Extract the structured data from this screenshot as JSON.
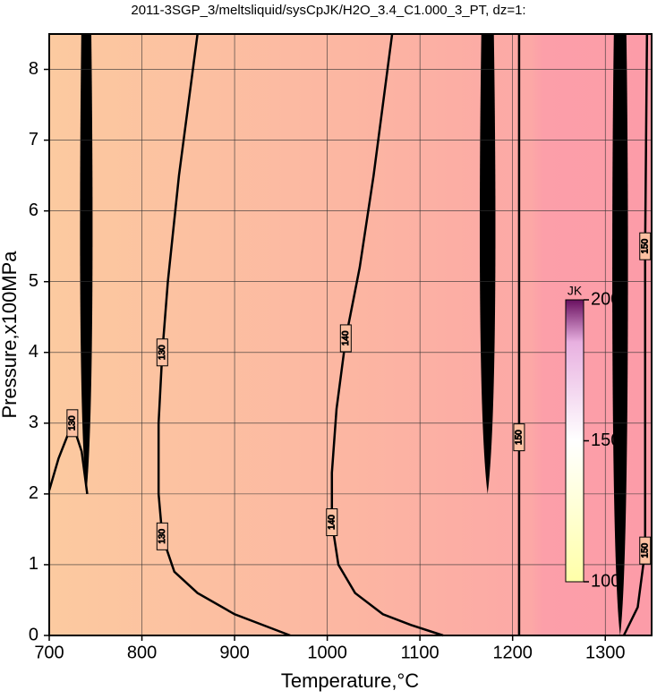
{
  "chart_data": {
    "type": "contour",
    "title": "2011-3SGP_3/meltsliquid/sysCpJK/H2O_3.4_C1.000_3_PT, dz=1:",
    "xlabel": "Temperature,°C",
    "ylabel": "Pressure,x100MPa",
    "xlim": [
      700,
      1350
    ],
    "ylim": [
      0,
      8.5
    ],
    "xticks": [
      700,
      800,
      900,
      1000,
      1100,
      1200,
      1300
    ],
    "yticks": [
      0,
      1,
      2,
      3,
      4,
      5,
      6,
      7,
      8
    ],
    "grid": true,
    "colorbar": {
      "label": "JK",
      "lim": [
        100,
        200
      ],
      "ticks": [
        100,
        150,
        200
      ]
    },
    "contours": [
      {
        "level": 130,
        "x": [
          960,
          930,
          900,
          860,
          835,
          822,
          818,
          818,
          822,
          828,
          840,
          860
        ],
        "y": [
          0,
          0.15,
          0.3,
          0.6,
          0.9,
          1.4,
          2.0,
          3.0,
          4.0,
          5.0,
          6.5,
          8.5
        ]
      },
      {
        "level": 130,
        "x": [
          700,
          710,
          725,
          735,
          741
        ],
        "y": [
          2.05,
          2.5,
          3.0,
          2.6,
          2.0
        ]
      },
      {
        "level": 140,
        "x": [
          1125,
          1090,
          1060,
          1030,
          1012,
          1005,
          1005,
          1010,
          1020,
          1035,
          1050,
          1070
        ],
        "y": [
          0,
          0.15,
          0.3,
          0.6,
          1.0,
          1.6,
          2.3,
          3.2,
          4.2,
          5.2,
          6.5,
          8.5
        ]
      },
      {
        "level": 150,
        "x": [
          1207,
          1207,
          1207,
          1207
        ],
        "y": [
          0,
          2.8,
          5.5,
          8.5
        ]
      },
      {
        "level": 150,
        "x": [
          1320,
          1335,
          1343,
          1343,
          1343,
          1345
        ],
        "y": [
          0,
          0.4,
          1.2,
          2.8,
          5.5,
          8.5
        ]
      }
    ]
  }
}
